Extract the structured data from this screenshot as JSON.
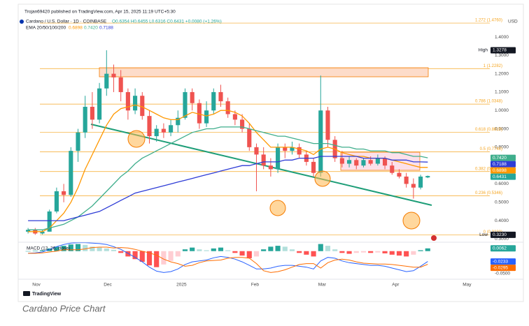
{
  "header": {
    "author": "Trojan69420 published on TradingView.com, Apr 15, 2025 11:19 UTC+5:30",
    "symbol": "Cardano / U.S. Dollar · 1D · COINBASE",
    "ohlc": "O0.6354 H0.6455 L0.6316 C0.6431 +0.0080 (+1.26%)",
    "ema_label": "EMA 20/50/100/200",
    "ema_values": [
      "0.6898",
      "0.7420",
      "0.7188"
    ]
  },
  "logo": "TradingView",
  "caption": "Cardano Price Chart",
  "chart_data": [
    {
      "type": "candlestick",
      "currency": "USD",
      "grid": false,
      "xlim": [
        0,
        65.2
      ],
      "xticks": [
        {
          "value": 1.67,
          "label": "Nov"
        },
        {
          "value": 11.67,
          "label": "Dec"
        },
        {
          "value": 22,
          "label": "2025"
        },
        {
          "value": 32.3,
          "label": "Feb"
        },
        {
          "value": 41.7,
          "label": "Mar"
        },
        {
          "value": 52,
          "label": "Apr"
        },
        {
          "value": 62,
          "label": "May"
        }
      ],
      "ylim": [
        0.29,
        1.556
      ],
      "yticks": [
        {
          "value": 1.4,
          "label": "1.4000"
        },
        {
          "value": 1.3,
          "label": "1.3000"
        },
        {
          "value": 1.2,
          "label": "1.2000"
        },
        {
          "value": 1.1,
          "label": "1.1000"
        },
        {
          "value": 1,
          "label": "1.0000"
        },
        {
          "value": 0.9,
          "label": "0.9000"
        },
        {
          "value": 0.8,
          "label": "0.8000"
        },
        {
          "value": 0.6,
          "label": "0.6000"
        },
        {
          "value": 0.5,
          "label": "0.5000"
        },
        {
          "value": 0.4,
          "label": "0.4000"
        },
        {
          "value": 0.3,
          "label": "0.3000"
        }
      ],
      "up_color": "#26a69a",
      "down_color": "#ef5350",
      "open": [
        0.34,
        0.35,
        0.33,
        0.34,
        0.45,
        0.56,
        0.54,
        0.78,
        0.88,
        1.02,
        0.95,
        1.12,
        1.2,
        1.18,
        1.1,
        1.0,
        1.08,
        0.97,
        0.86,
        0.9,
        0.88,
        0.92,
        0.96,
        1.1,
        1.04,
        0.93,
        1.0,
        1.1,
        1.05,
        0.98,
        0.95,
        0.9,
        0.8,
        0.76,
        0.7,
        0.68,
        0.8,
        0.78,
        0.8,
        0.76,
        0.72,
        0.66,
        1.0,
        0.84,
        0.74,
        0.71,
        0.73,
        0.7,
        0.73,
        0.71,
        0.74,
        0.7,
        0.66,
        0.64,
        0.6,
        0.58,
        0.6354
      ],
      "high": [
        0.36,
        0.36,
        0.35,
        0.46,
        0.58,
        0.6,
        0.8,
        0.9,
        1.08,
        1.1,
        1.15,
        1.3278,
        1.25,
        1.22,
        1.12,
        1.12,
        1.1,
        1.0,
        0.92,
        0.93,
        0.95,
        1.0,
        1.12,
        1.12,
        1.06,
        1.05,
        1.12,
        1.14,
        1.07,
        1.0,
        0.98,
        0.93,
        0.82,
        0.8,
        0.74,
        0.82,
        0.82,
        0.83,
        0.82,
        0.78,
        0.74,
        1.19,
        1.02,
        0.86,
        0.78,
        0.75,
        0.74,
        0.74,
        0.75,
        0.76,
        0.75,
        0.72,
        0.68,
        0.66,
        0.63,
        0.65,
        0.6455
      ],
      "low": [
        0.33,
        0.323,
        0.325,
        0.34,
        0.44,
        0.5,
        0.53,
        0.72,
        0.85,
        0.9,
        0.93,
        1.08,
        1.1,
        1.05,
        0.95,
        0.98,
        0.95,
        0.82,
        0.83,
        0.85,
        0.86,
        0.88,
        0.95,
        1.0,
        0.9,
        0.91,
        0.98,
        1.02,
        0.96,
        0.92,
        0.88,
        0.78,
        0.56,
        0.68,
        0.64,
        0.66,
        0.74,
        0.76,
        0.74,
        0.7,
        0.64,
        0.64,
        0.8,
        0.72,
        0.69,
        0.69,
        0.68,
        0.69,
        0.7,
        0.7,
        0.68,
        0.65,
        0.63,
        0.58,
        0.52,
        0.57,
        0.6316
      ],
      "close": [
        0.35,
        0.33,
        0.34,
        0.45,
        0.56,
        0.54,
        0.78,
        0.88,
        1.02,
        0.95,
        1.12,
        1.2,
        1.18,
        1.1,
        1.0,
        1.08,
        0.97,
        0.86,
        0.9,
        0.88,
        0.92,
        0.96,
        1.1,
        1.04,
        0.93,
        1.0,
        1.1,
        1.05,
        0.98,
        0.95,
        0.9,
        0.8,
        0.76,
        0.7,
        0.68,
        0.8,
        0.78,
        0.8,
        0.76,
        0.72,
        0.66,
        1.0,
        0.84,
        0.74,
        0.71,
        0.73,
        0.7,
        0.73,
        0.71,
        0.74,
        0.7,
        0.66,
        0.64,
        0.6,
        0.58,
        0.64,
        0.6431
      ],
      "overlays": [
        {
          "color": "#ff9800",
          "values": [
            0.34,
            0.34,
            0.34,
            0.36,
            0.4,
            0.44,
            0.5,
            0.58,
            0.68,
            0.76,
            0.84,
            0.92,
            0.98,
            1.01,
            1.02,
            1.03,
            1.02,
            1.0,
            0.98,
            0.96,
            0.95,
            0.95,
            0.97,
            0.99,
            0.98,
            0.97,
            0.98,
            1.0,
            1.0,
            0.99,
            0.97,
            0.93,
            0.88,
            0.84,
            0.8,
            0.8,
            0.8,
            0.8,
            0.79,
            0.78,
            0.76,
            0.79,
            0.8,
            0.79,
            0.77,
            0.76,
            0.75,
            0.75,
            0.74,
            0.74,
            0.74,
            0.73,
            0.72,
            0.71,
            0.7,
            0.69,
            0.6898
          ]
        },
        {
          "color": "#3fae8c",
          "values": [
            0.35,
            0.35,
            0.35,
            0.36,
            0.37,
            0.38,
            0.4,
            0.42,
            0.45,
            0.48,
            0.52,
            0.56,
            0.6,
            0.64,
            0.67,
            0.71,
            0.74,
            0.76,
            0.78,
            0.8,
            0.82,
            0.84,
            0.86,
            0.88,
            0.89,
            0.9,
            0.9,
            0.91,
            0.91,
            0.91,
            0.91,
            0.9,
            0.89,
            0.88,
            0.87,
            0.86,
            0.86,
            0.85,
            0.84,
            0.83,
            0.82,
            0.82,
            0.82,
            0.81,
            0.8,
            0.8,
            0.79,
            0.79,
            0.78,
            0.78,
            0.78,
            0.77,
            0.77,
            0.76,
            0.75,
            0.75,
            0.742
          ]
        },
        {
          "color": "#2e3cd6",
          "values": [
            0.4,
            0.4,
            0.4,
            0.4,
            0.4,
            0.4,
            0.41,
            0.42,
            0.43,
            0.44,
            0.45,
            0.47,
            0.49,
            0.51,
            0.53,
            0.55,
            0.56,
            0.57,
            0.58,
            0.59,
            0.6,
            0.61,
            0.62,
            0.63,
            0.64,
            0.65,
            0.66,
            0.67,
            0.68,
            0.69,
            0.7,
            0.7,
            0.71,
            0.72,
            0.72,
            0.72,
            0.73,
            0.73,
            0.74,
            0.74,
            0.74,
            0.75,
            0.75,
            0.75,
            0.75,
            0.75,
            0.75,
            0.74,
            0.74,
            0.74,
            0.74,
            0.73,
            0.73,
            0.73,
            0.72,
            0.72,
            0.7188
          ]
        }
      ],
      "fib_color": "#f5a623",
      "fib_levels": [
        {
          "value": 1.476,
          "label": "1.272 (1.4760)"
        },
        {
          "value": 1.2282,
          "label": "1 (1.2282)"
        },
        {
          "value": 1.0348,
          "label": "0.786 (1.0348)"
        },
        {
          "value": 0.8819,
          "label": "0.618 (0.8819)"
        },
        {
          "value": 0.7748,
          "label": "0.5 (0.7748)"
        },
        {
          "value": 0.6673,
          "label": "0.382 (0.6673)"
        },
        {
          "value": 0.5346,
          "label": "0.236 (0.5346)"
        },
        {
          "value": 0.323,
          "label": "0 (0.3230)"
        }
      ],
      "price_markers": [
        {
          "name": "High",
          "value": 1.3278,
          "label": "1.3278",
          "color": "#131722"
        },
        {
          "value": 0.742,
          "label": "0.7420",
          "color": "#3fae8c"
        },
        {
          "value": 0.7188,
          "label": "0.7188",
          "color": "#2e3cd6"
        },
        {
          "value": 0.6898,
          "label": "0.6898",
          "color": "#ff9800"
        },
        {
          "value": 0.6431,
          "label": "0.6431",
          "color": "#26a69a"
        },
        {
          "name": "Low",
          "value": 0.323,
          "label": "0.3230",
          "color": "#131722"
        }
      ]
    },
    {
      "type": "macd",
      "title": "MACD (12, 26, close)",
      "ylim": [
        -0.06,
        0.02
      ],
      "yticks": [
        {
          "value": -0.05,
          "label": "-0.0500"
        }
      ],
      "hist_colors": [
        "#26a69a",
        "#b2dfdb",
        "#ffcdd2",
        "#ff5252"
      ],
      "histogram": [
        0,
        0.001,
        0.002,
        0.006,
        0.01,
        0.012,
        0.015,
        0.016,
        0.014,
        0.01,
        0.008,
        0.006,
        0.003,
        -0.004,
        -0.012,
        -0.018,
        -0.024,
        -0.032,
        -0.036,
        -0.03,
        -0.022,
        -0.012,
        0.004,
        0.008,
        0.004,
        0.002,
        0.006,
        0.008,
        0.002,
        -0.004,
        -0.01,
        -0.016,
        -0.012,
        0.004,
        0.01,
        0.012,
        0.01,
        0.004,
        -0.004,
        -0.008,
        -0.012,
        0.016,
        0.012,
        0.004,
        -0.004,
        -0.006,
        -0.004,
        -0.003,
        -0.004,
        -0.003,
        -0.005,
        -0.008,
        -0.01,
        -0.012,
        -0.008,
        0.002,
        0.0062
      ],
      "series": [
        {
          "color": "#2962ff",
          "values": [
            -0.005,
            -0.004,
            -0.002,
            0.004,
            0.01,
            0.015,
            0.018,
            0.019,
            0.019,
            0.018,
            0.017,
            0.015,
            0.01,
            0.004,
            -0.005,
            -0.014,
            -0.024,
            -0.036,
            -0.045,
            -0.048,
            -0.046,
            -0.04,
            -0.03,
            -0.024,
            -0.022,
            -0.02,
            -0.015,
            -0.012,
            -0.014,
            -0.018,
            -0.024,
            -0.032,
            -0.04,
            -0.04,
            -0.038,
            -0.034,
            -0.032,
            -0.032,
            -0.034,
            -0.036,
            -0.04,
            -0.022,
            -0.014,
            -0.016,
            -0.022,
            -0.026,
            -0.028,
            -0.03,
            -0.032,
            -0.032,
            -0.034,
            -0.038,
            -0.042,
            -0.046,
            -0.044,
            -0.034,
            -0.0233
          ]
        },
        {
          "color": "#ff6d00",
          "values": [
            -0.005,
            -0.005,
            -0.004,
            -0.002,
            0,
            0.003,
            0.003,
            0.003,
            0.005,
            0.008,
            0.009,
            0.009,
            0.007,
            0.008,
            0.007,
            0.004,
            0,
            -0.004,
            -0.009,
            -0.018,
            -0.024,
            -0.028,
            -0.034,
            -0.032,
            -0.026,
            -0.022,
            -0.021,
            -0.02,
            -0.016,
            -0.014,
            -0.014,
            -0.016,
            -0.028,
            -0.044,
            -0.048,
            -0.046,
            -0.042,
            -0.036,
            -0.03,
            -0.028,
            -0.028,
            -0.038,
            -0.026,
            -0.02,
            -0.018,
            -0.02,
            -0.024,
            -0.027,
            -0.028,
            -0.029,
            -0.029,
            -0.03,
            -0.032,
            -0.034,
            -0.036,
            -0.036,
            -0.0295
          ]
        }
      ],
      "price_markers": [
        {
          "value": 0.0062,
          "label": "0.0062",
          "color": "#26a69a"
        },
        {
          "value": -0.0233,
          "label": "-0.0233",
          "color": "#2962ff"
        },
        {
          "value": -0.0295,
          "label": "-0.0295",
          "color": "#ff6d00"
        }
      ]
    }
  ]
}
